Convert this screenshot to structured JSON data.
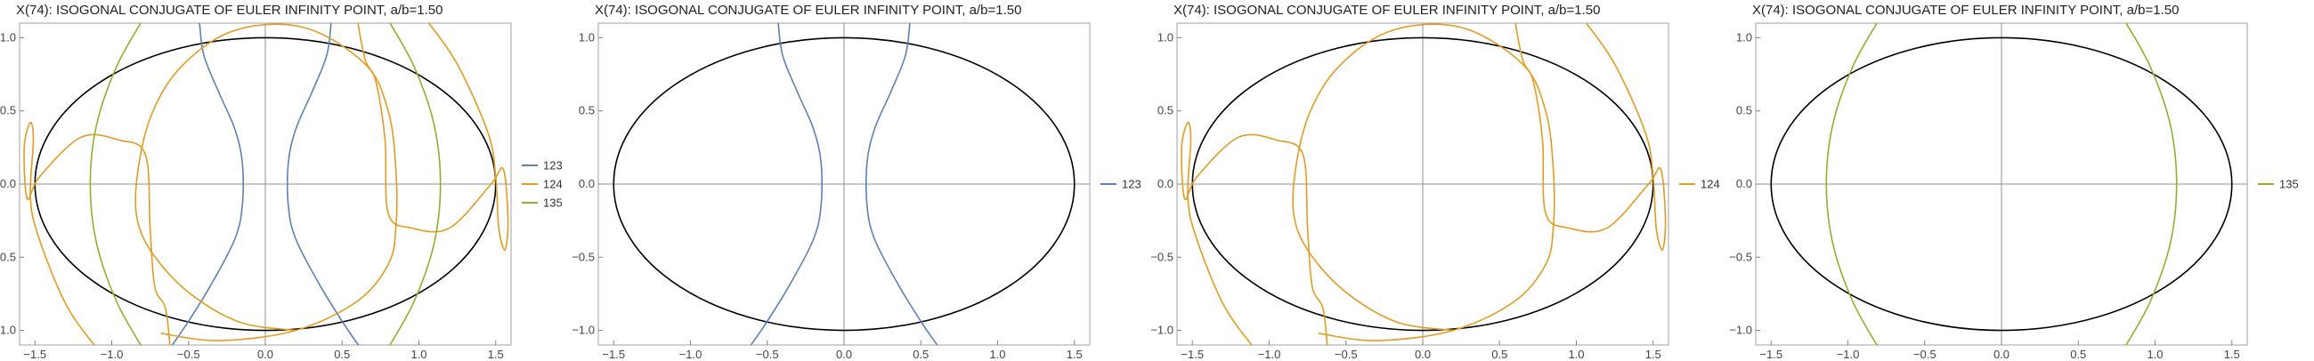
{
  "chart_data": [
    {
      "type": "line",
      "title": "X(74): ISOGONAL CONJUGATE OF EULER INFINITY POINT, a/b=1.50",
      "xlim": [
        -1.6,
        1.6
      ],
      "ylim": [
        -1.1,
        1.1
      ],
      "xticks": [
        -1.5,
        -1.0,
        -0.5,
        0.0,
        0.5,
        1.0,
        1.5
      ],
      "xtick_labels": [
        "−1.5",
        "−1.0",
        "−0.5",
        "0.0",
        "0.5",
        "1.0",
        "1.5"
      ],
      "yticks": [
        -1.0,
        -0.5,
        0.0,
        0.5,
        1.0
      ],
      "ytick_labels": [
        "−1.0",
        "−0.5",
        "0.0",
        "0.5",
        "1.0"
      ],
      "ellipse": {
        "a": 1.5,
        "b": 1.0,
        "color": "#000000"
      },
      "legend_position": "right",
      "series": [
        {
          "name": "123",
          "color": "#5e81b5",
          "curves": [
            [
              [
                -0.62,
                -1.12
              ],
              [
                -0.52,
                -0.97
              ],
              [
                -0.36,
                -0.7
              ],
              [
                -0.2,
                -0.38
              ],
              [
                -0.15,
                -0.15
              ],
              [
                -0.15,
                0.15
              ],
              [
                -0.2,
                0.38
              ],
              [
                -0.3,
                0.62
              ],
              [
                -0.4,
                0.88
              ],
              [
                -0.43,
                1.12
              ]
            ],
            [
              [
                0.62,
                -1.12
              ],
              [
                0.52,
                -0.97
              ],
              [
                0.36,
                -0.7
              ],
              [
                0.2,
                -0.38
              ],
              [
                0.15,
                -0.15
              ],
              [
                0.15,
                0.15
              ],
              [
                0.2,
                0.38
              ],
              [
                0.3,
                0.62
              ],
              [
                0.4,
                0.88
              ],
              [
                0.43,
                1.12
              ]
            ]
          ]
        },
        {
          "name": "124",
          "color": "#e19c24",
          "curves": [
            [
              [
                -1.1,
                -1.12
              ],
              [
                -1.3,
                -0.82
              ],
              [
                -1.48,
                -0.35
              ],
              [
                -1.53,
                -0.08
              ],
              [
                -1.51,
                0.3
              ],
              [
                -1.53,
                0.42
              ],
              [
                -1.57,
                0.25
              ],
              [
                -1.55,
                -0.1
              ],
              [
                -1.47,
                0.05
              ],
              [
                -1.2,
                0.32
              ],
              [
                -0.95,
                0.3
              ],
              [
                -0.78,
                0.2
              ],
              [
                -0.75,
                -0.3
              ],
              [
                -0.72,
                -0.7
              ],
              [
                -0.65,
                -0.85
              ],
              [
                -0.62,
                -1.12
              ]
            ],
            [
              [
                -0.68,
                -1.02
              ],
              [
                -0.3,
                -1.07
              ],
              [
                0.2,
                -1.0
              ],
              [
                0.6,
                -0.8
              ],
              [
                0.8,
                -0.55
              ],
              [
                0.85,
                -0.3
              ],
              [
                0.85,
                0.1
              ],
              [
                0.8,
                0.5
              ],
              [
                0.65,
                0.82
              ],
              [
                0.25,
                1.07
              ],
              [
                -0.2,
                1.05
              ],
              [
                -0.55,
                0.8
              ],
              [
                -0.75,
                0.45
              ],
              [
                -0.84,
                0.0
              ],
              [
                -0.82,
                -0.3
              ],
              [
                -0.68,
                -0.55
              ],
              [
                -0.45,
                -0.78
              ],
              [
                -0.15,
                -0.95
              ],
              [
                0.2,
                -1.0
              ]
            ],
            [
              [
                1.05,
                1.12
              ],
              [
                1.25,
                0.82
              ],
              [
                1.45,
                0.35
              ],
              [
                1.5,
                0.05
              ],
              [
                1.52,
                -0.3
              ],
              [
                1.56,
                -0.45
              ],
              [
                1.58,
                -0.25
              ],
              [
                1.55,
                0.1
              ],
              [
                1.47,
                0.0
              ],
              [
                1.2,
                -0.3
              ],
              [
                0.95,
                -0.3
              ],
              [
                0.8,
                -0.2
              ],
              [
                0.78,
                0.3
              ],
              [
                0.72,
                0.7
              ],
              [
                0.65,
                0.85
              ],
              [
                0.6,
                1.12
              ]
            ]
          ]
        },
        {
          "name": "135",
          "color": "#8fb131",
          "curves": [
            [
              [
                -0.8,
                -1.12
              ],
              [
                -0.97,
                -0.8
              ],
              [
                -1.1,
                -0.4
              ],
              [
                -1.14,
                0.0
              ],
              [
                -1.1,
                0.4
              ],
              [
                -0.97,
                0.8
              ],
              [
                -0.8,
                1.12
              ]
            ],
            [
              [
                0.8,
                -1.12
              ],
              [
                0.97,
                -0.8
              ],
              [
                1.1,
                -0.4
              ],
              [
                1.14,
                0.0
              ],
              [
                1.1,
                0.4
              ],
              [
                0.97,
                0.8
              ],
              [
                0.8,
                1.12
              ]
            ]
          ]
        }
      ]
    },
    {
      "type": "line",
      "title": "X(74): ISOGONAL CONJUGATE OF EULER INFINITY POINT, a/b=1.50",
      "xlim": [
        -1.6,
        1.6
      ],
      "ylim": [
        -1.1,
        1.1
      ],
      "xticks": [
        -1.5,
        -1.0,
        -0.5,
        0.0,
        0.5,
        1.0,
        1.5
      ],
      "xtick_labels": [
        "−1.5",
        "−1.0",
        "−0.5",
        "0.0",
        "0.5",
        "1.0",
        "1.5"
      ],
      "yticks": [
        -1.0,
        -0.5,
        0.0,
        0.5,
        1.0
      ],
      "ytick_labels": [
        "−1.0",
        "−0.5",
        "0.0",
        "0.5",
        "1.0"
      ],
      "ellipse": {
        "a": 1.5,
        "b": 1.0,
        "color": "#000000"
      },
      "legend_position": "right",
      "series": [
        {
          "name": "123",
          "color": "#5e81b5",
          "curves": [
            [
              [
                -0.62,
                -1.12
              ],
              [
                -0.52,
                -0.97
              ],
              [
                -0.36,
                -0.7
              ],
              [
                -0.2,
                -0.38
              ],
              [
                -0.15,
                -0.15
              ],
              [
                -0.15,
                0.15
              ],
              [
                -0.2,
                0.38
              ],
              [
                -0.3,
                0.62
              ],
              [
                -0.4,
                0.88
              ],
              [
                -0.43,
                1.12
              ]
            ],
            [
              [
                0.62,
                -1.12
              ],
              [
                0.52,
                -0.97
              ],
              [
                0.36,
                -0.7
              ],
              [
                0.2,
                -0.38
              ],
              [
                0.15,
                -0.15
              ],
              [
                0.15,
                0.15
              ],
              [
                0.2,
                0.38
              ],
              [
                0.3,
                0.62
              ],
              [
                0.4,
                0.88
              ],
              [
                0.43,
                1.12
              ]
            ]
          ]
        }
      ]
    },
    {
      "type": "line",
      "title": "X(74): ISOGONAL CONJUGATE OF EULER INFINITY POINT, a/b=1.50",
      "xlim": [
        -1.6,
        1.6
      ],
      "ylim": [
        -1.1,
        1.1
      ],
      "xticks": [
        -1.5,
        -1.0,
        -0.5,
        0.0,
        0.5,
        1.0,
        1.5
      ],
      "xtick_labels": [
        "−1.5",
        "−1.0",
        "−0.5",
        "0.0",
        "0.5",
        "1.0",
        "1.5"
      ],
      "yticks": [
        -1.0,
        -0.5,
        0.0,
        0.5,
        1.0
      ],
      "ytick_labels": [
        "−1.0",
        "−0.5",
        "0.0",
        "0.5",
        "1.0"
      ],
      "ellipse": {
        "a": 1.5,
        "b": 1.0,
        "color": "#000000"
      },
      "legend_position": "right",
      "series": [
        {
          "name": "124",
          "color": "#e19c24",
          "curves": [
            [
              [
                -1.1,
                -1.12
              ],
              [
                -1.3,
                -0.82
              ],
              [
                -1.48,
                -0.35
              ],
              [
                -1.53,
                -0.08
              ],
              [
                -1.51,
                0.3
              ],
              [
                -1.53,
                0.42
              ],
              [
                -1.57,
                0.25
              ],
              [
                -1.55,
                -0.1
              ],
              [
                -1.47,
                0.05
              ],
              [
                -1.2,
                0.32
              ],
              [
                -0.95,
                0.3
              ],
              [
                -0.78,
                0.2
              ],
              [
                -0.75,
                -0.3
              ],
              [
                -0.72,
                -0.7
              ],
              [
                -0.65,
                -0.85
              ],
              [
                -0.62,
                -1.12
              ]
            ],
            [
              [
                -0.68,
                -1.02
              ],
              [
                -0.3,
                -1.07
              ],
              [
                0.2,
                -1.0
              ],
              [
                0.6,
                -0.8
              ],
              [
                0.8,
                -0.55
              ],
              [
                0.85,
                -0.3
              ],
              [
                0.85,
                0.1
              ],
              [
                0.8,
                0.5
              ],
              [
                0.65,
                0.82
              ],
              [
                0.25,
                1.07
              ],
              [
                -0.2,
                1.05
              ],
              [
                -0.55,
                0.8
              ],
              [
                -0.75,
                0.45
              ],
              [
                -0.84,
                0.0
              ],
              [
                -0.82,
                -0.3
              ],
              [
                -0.68,
                -0.55
              ],
              [
                -0.45,
                -0.78
              ],
              [
                -0.15,
                -0.95
              ],
              [
                0.2,
                -1.0
              ]
            ],
            [
              [
                1.05,
                1.12
              ],
              [
                1.25,
                0.82
              ],
              [
                1.45,
                0.35
              ],
              [
                1.5,
                0.05
              ],
              [
                1.52,
                -0.3
              ],
              [
                1.56,
                -0.45
              ],
              [
                1.58,
                -0.25
              ],
              [
                1.55,
                0.1
              ],
              [
                1.47,
                0.0
              ],
              [
                1.2,
                -0.3
              ],
              [
                0.95,
                -0.3
              ],
              [
                0.8,
                -0.2
              ],
              [
                0.78,
                0.3
              ],
              [
                0.72,
                0.7
              ],
              [
                0.65,
                0.85
              ],
              [
                0.6,
                1.12
              ]
            ]
          ]
        }
      ]
    },
    {
      "type": "line",
      "title": "X(74): ISOGONAL CONJUGATE OF EULER INFINITY POINT, a/b=1.50",
      "xlim": [
        -1.6,
        1.6
      ],
      "ylim": [
        -1.1,
        1.1
      ],
      "xticks": [
        -1.5,
        -1.0,
        -0.5,
        0.0,
        0.5,
        1.0,
        1.5
      ],
      "xtick_labels": [
        "−1.5",
        "−1.0",
        "−0.5",
        "0.0",
        "0.5",
        "1.0",
        "1.5"
      ],
      "yticks": [
        -1.0,
        -0.5,
        0.0,
        0.5,
        1.0
      ],
      "ytick_labels": [
        "−1.0",
        "−0.5",
        "0.0",
        "0.5",
        "1.0"
      ],
      "ellipse": {
        "a": 1.5,
        "b": 1.0,
        "color": "#000000"
      },
      "legend_position": "right",
      "series": [
        {
          "name": "135",
          "color": "#8fb131",
          "curves": [
            [
              [
                -0.8,
                -1.12
              ],
              [
                -0.97,
                -0.8
              ],
              [
                -1.1,
                -0.4
              ],
              [
                -1.14,
                0.0
              ],
              [
                -1.1,
                0.4
              ],
              [
                -0.97,
                0.8
              ],
              [
                -0.8,
                1.12
              ]
            ],
            [
              [
                0.8,
                -1.12
              ],
              [
                0.97,
                -0.8
              ],
              [
                1.1,
                -0.4
              ],
              [
                1.14,
                0.0
              ],
              [
                1.1,
                0.4
              ],
              [
                0.97,
                0.8
              ],
              [
                0.8,
                1.12
              ]
            ]
          ]
        }
      ]
    }
  ]
}
